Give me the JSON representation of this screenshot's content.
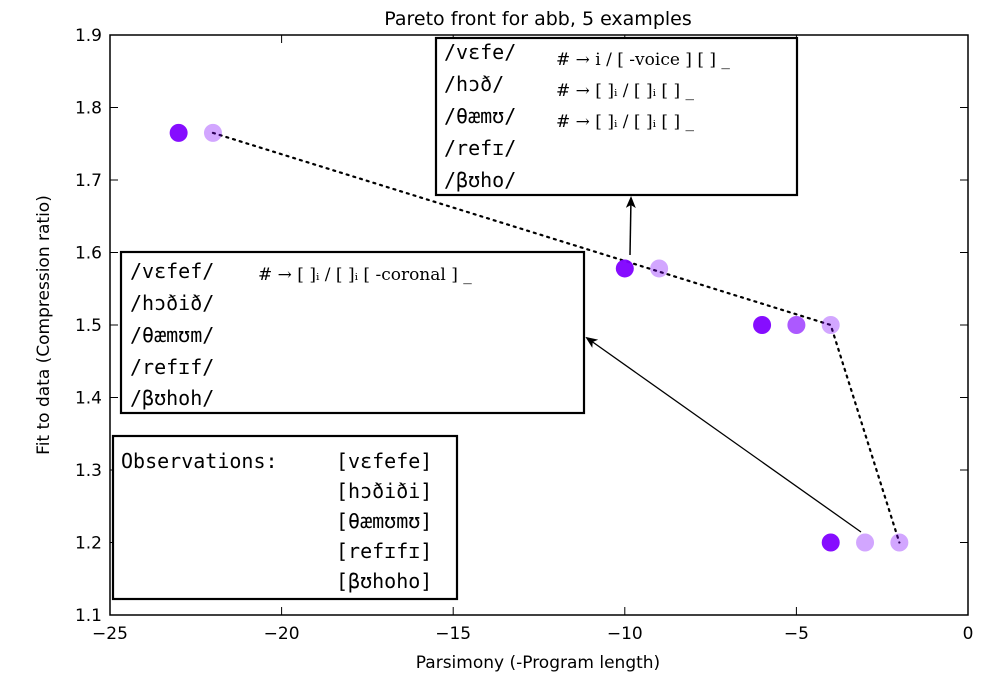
{
  "chart_data": {
    "type": "scatter",
    "title": "Pareto front for abb, 5 examples",
    "xlabel": "Parsimony (-Program length)",
    "ylabel": "Fit to data (Compression ratio)",
    "xlim": [
      -25,
      0
    ],
    "ylim": [
      1.1,
      1.9
    ],
    "xticks": [
      "−25",
      "−20",
      "−15",
      "−10",
      "−5",
      "0"
    ],
    "yticks": [
      "1.1",
      "1.2",
      "1.3",
      "1.4",
      "1.5",
      "1.6",
      "1.7",
      "1.8",
      "1.9"
    ],
    "grid": false,
    "points": [
      {
        "x": -23,
        "y": 1.765,
        "color": "#7f00ff",
        "opacity": 0.95
      },
      {
        "x": -22,
        "y": 1.765,
        "color": "#7f00ff",
        "opacity": 0.35
      },
      {
        "x": -10,
        "y": 1.578,
        "color": "#7f00ff",
        "opacity": 0.95
      },
      {
        "x": -9,
        "y": 1.578,
        "color": "#7f00ff",
        "opacity": 0.35
      },
      {
        "x": -6,
        "y": 1.5,
        "color": "#7f00ff",
        "opacity": 0.95
      },
      {
        "x": -5,
        "y": 1.5,
        "color": "#7f00ff",
        "opacity": 0.65
      },
      {
        "x": -4,
        "y": 1.5,
        "color": "#7f00ff",
        "opacity": 0.35
      },
      {
        "x": -4,
        "y": 1.2,
        "color": "#7f00ff",
        "opacity": 0.95
      },
      {
        "x": -3,
        "y": 1.2,
        "color": "#7f00ff",
        "opacity": 0.35
      },
      {
        "x": -2,
        "y": 1.2,
        "color": "#7f00ff",
        "opacity": 0.35
      }
    ],
    "frontier": [
      {
        "x": -22,
        "y": 1.765
      },
      {
        "x": -4,
        "y": 1.5
      },
      {
        "x": -2,
        "y": 1.2
      }
    ],
    "annotations": {
      "top_box": {
        "words": [
          "/vɛfe/",
          "/hɔð/",
          "/θæmʊ/",
          "/refɪ/",
          "/βʊho/"
        ],
        "rules": [
          "# → i / [ -voice ] [ ] _",
          "# → [ ]ᵢ / [ ]ᵢ [ ] _",
          "# → [ ]ᵢ / [ ]ᵢ [ ] _"
        ]
      },
      "mid_box": {
        "words": [
          "/vɛfef/",
          "/hɔðið/",
          "/θæmʊm/",
          "/refɪf/",
          "/βʊhoh/"
        ],
        "rules": [
          "# → [ ]ᵢ / [ ]ᵢ [ -coronal ] _"
        ]
      },
      "obs_box": {
        "label": "Observations:",
        "words": [
          "[vɛfefe]",
          "[hɔðiði]",
          "[θæmʊmʊ]",
          "[refɪfɪ]",
          "[βʊhoho]"
        ]
      }
    }
  }
}
